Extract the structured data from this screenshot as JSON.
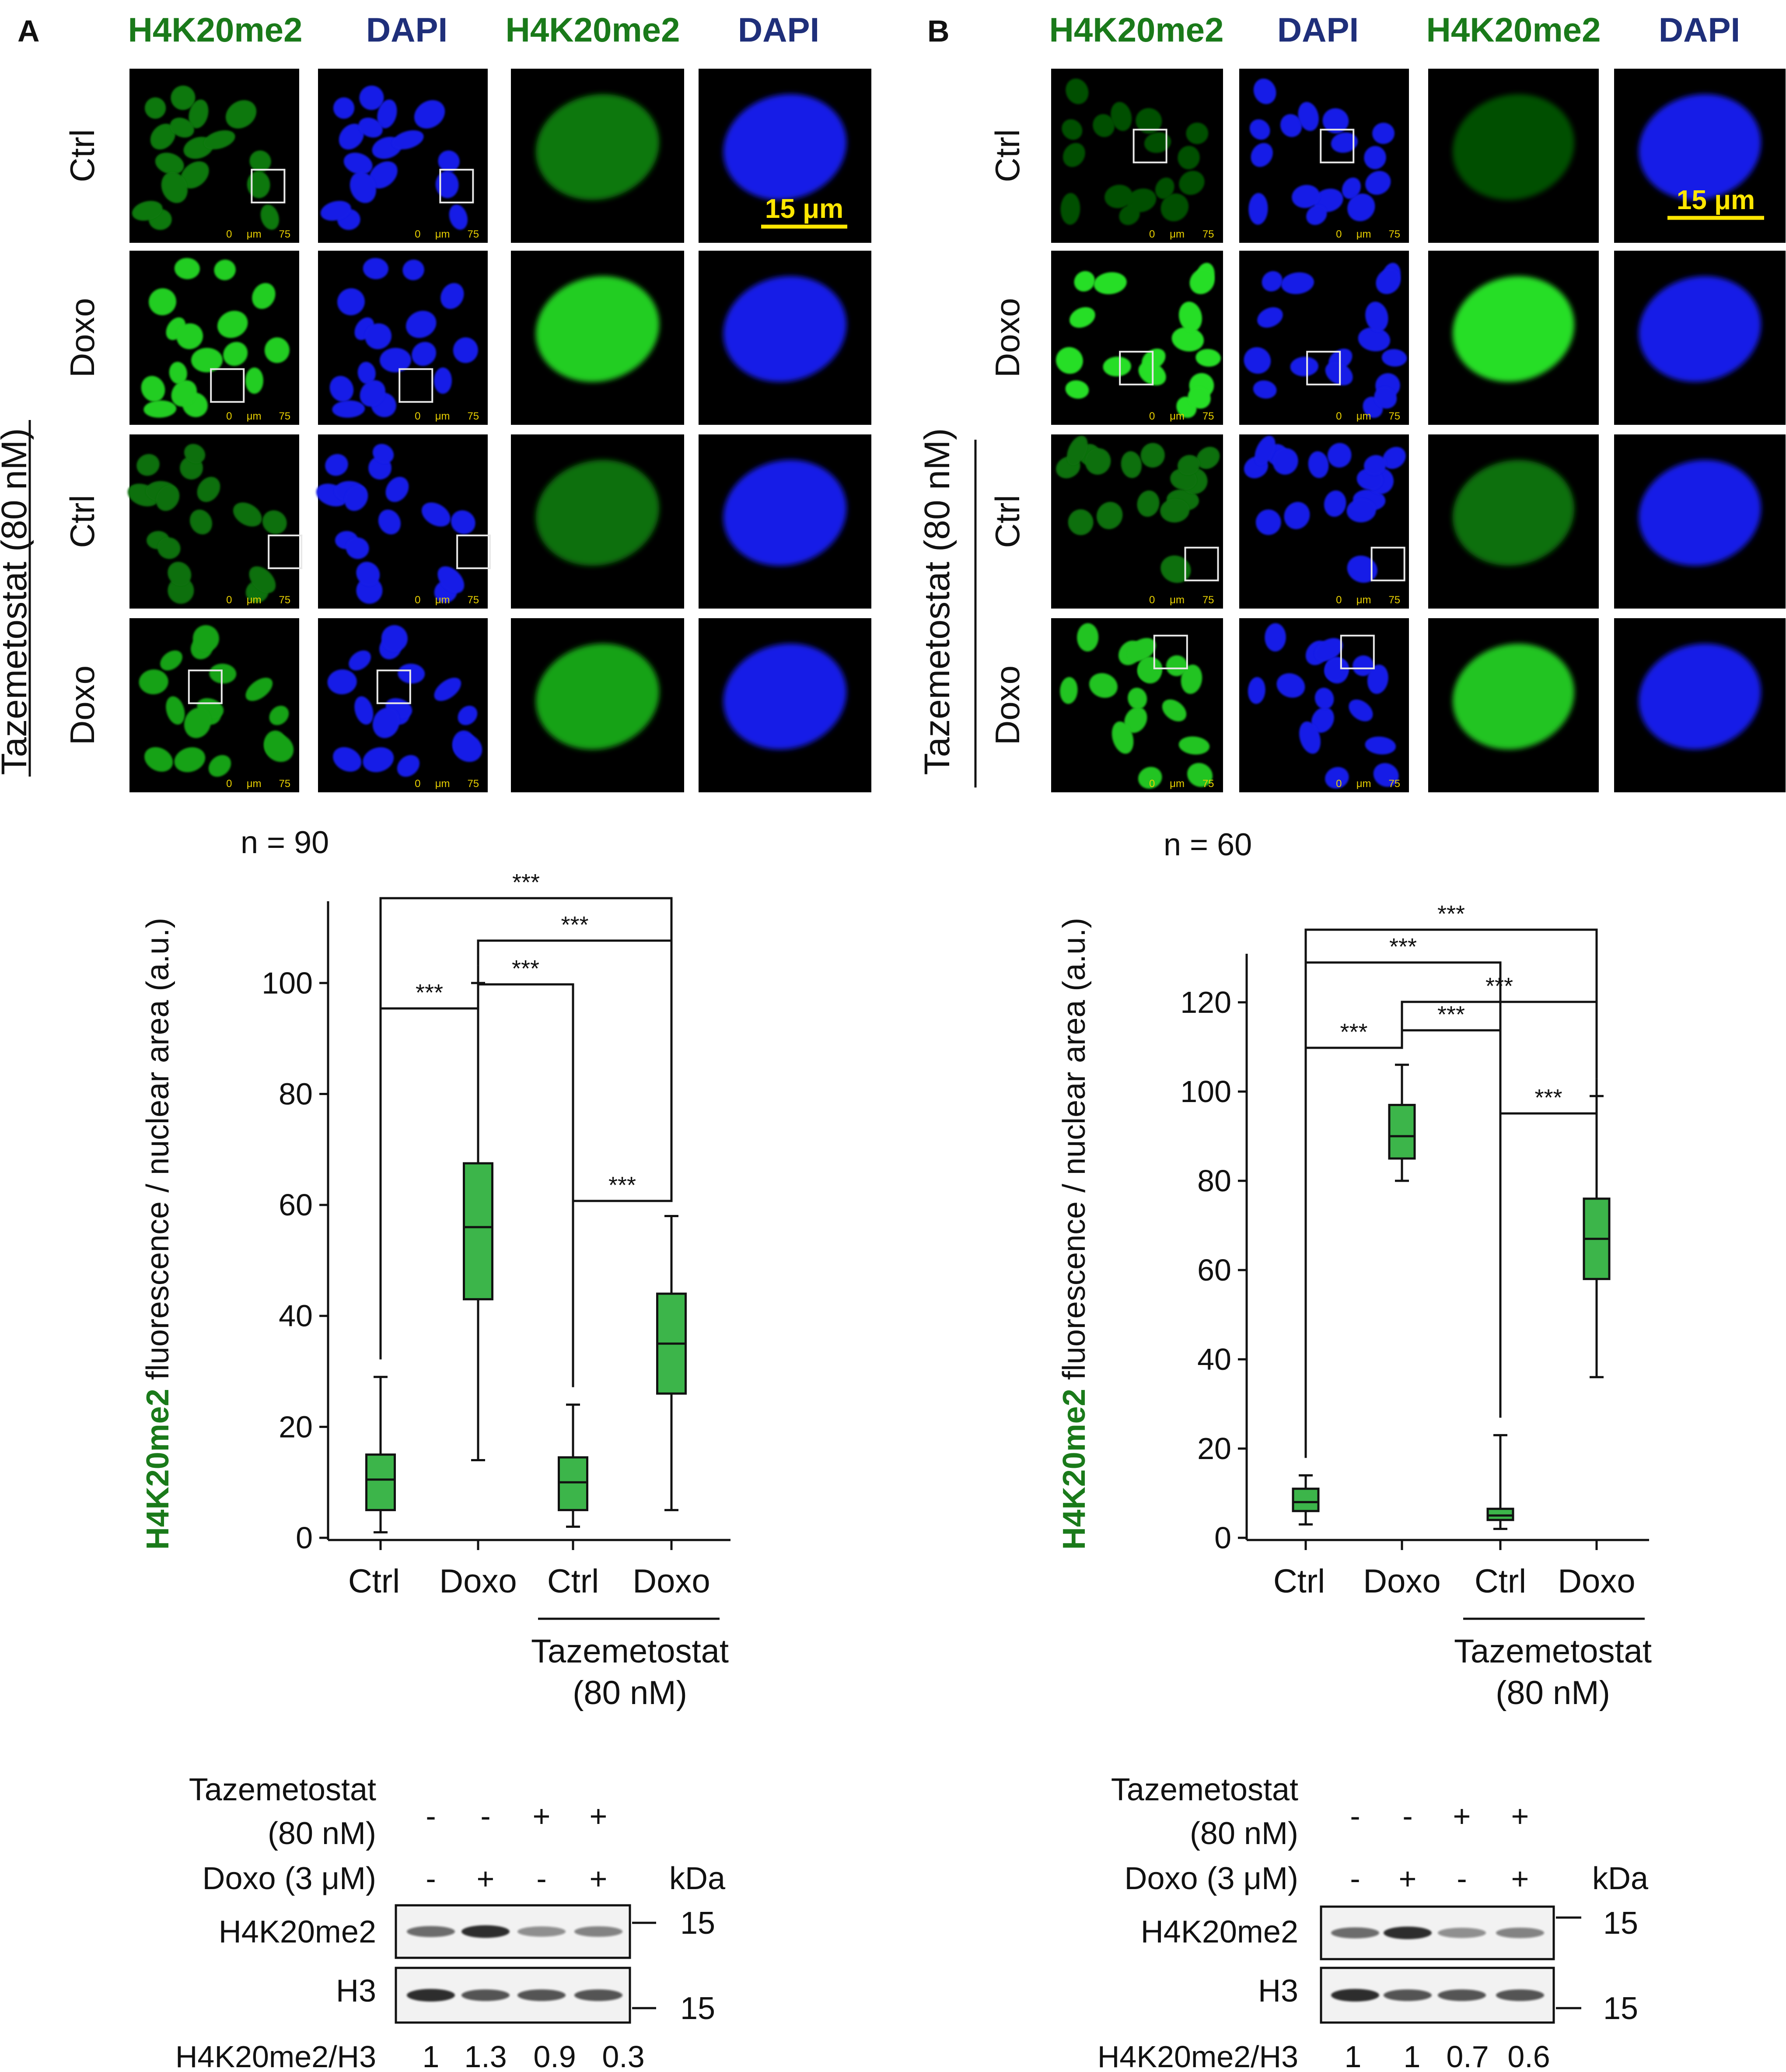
{
  "panels": [
    {
      "letter": "A",
      "headers": [
        "H4K20me2",
        "DAPI",
        "H4K20me2",
        "DAPI"
      ],
      "header_colors": [
        "#1a7a1a",
        "#1f2f7a",
        "#1a7a1a",
        "#1f2f7a"
      ],
      "row_labels": [
        "Ctrl",
        "Doxo",
        "Ctrl",
        "Doxo"
      ],
      "side_label": "Tazemetostat (80 nM)",
      "scale_bar_text": "15 μm",
      "tiny_scale_text": [
        "0",
        "μm",
        "75"
      ],
      "chart_data": {
        "type": "box",
        "n_label": "n = 90",
        "ylabel_colored": "H4K20me2",
        "ylabel_rest": " fluorescence / nuclear area  (a.u.)",
        "ylim": [
          0,
          110
        ],
        "yticks": [
          0,
          20,
          40,
          60,
          80,
          100
        ],
        "categories": [
          "Ctrl",
          "Doxo",
          "Ctrl",
          "Doxo"
        ],
        "group_label": [
          "Tazemetostat",
          "(80 nM)"
        ],
        "boxes": [
          {
            "min": 1,
            "q1": 5,
            "median": 10.5,
            "q3": 15,
            "max": 29
          },
          {
            "min": 14,
            "q1": 43,
            "median": 56,
            "q3": 67.5,
            "max": 100
          },
          {
            "min": 2,
            "q1": 5,
            "median": 10,
            "q3": 14.5,
            "max": 24
          },
          {
            "min": 5,
            "q1": 26,
            "median": 35,
            "q3": 44,
            "max": 58
          }
        ],
        "significance": [
          {
            "a": 0,
            "b": 3,
            "label": "***"
          },
          {
            "a": 1,
            "b": 3,
            "label": "***"
          },
          {
            "a": 1,
            "b": 2,
            "label": "***"
          },
          {
            "a": 0,
            "b": 1,
            "label": "***"
          },
          {
            "a": 2,
            "b": 3,
            "label": "***"
          }
        ]
      },
      "blot": {
        "taz_label": [
          "Tazemetostat",
          "(80 nM)"
        ],
        "taz_signs": [
          "-",
          "-",
          "+",
          "+"
        ],
        "doxo_label": "Doxo (3 μM)",
        "doxo_signs": [
          "-",
          "+",
          "-",
          "+"
        ],
        "kda": "kDa",
        "bands": [
          "H4K20me2",
          "H3"
        ],
        "marker": "15",
        "ratio_label": "H4K20me2/H3",
        "ratios": [
          "1",
          "1.3",
          "0.9",
          "0.3"
        ]
      }
    },
    {
      "letter": "B",
      "headers": [
        "H4K20me2",
        "DAPI",
        "H4K20me2",
        "DAPI"
      ],
      "header_colors": [
        "#1a7a1a",
        "#1f2f7a",
        "#1a7a1a",
        "#1f2f7a"
      ],
      "row_labels": [
        "Ctrl",
        "Doxo",
        "Ctrl",
        "Doxo"
      ],
      "side_label": "Tazemetostat (80 nM)",
      "scale_bar_text": "15 μm",
      "tiny_scale_text": [
        "0",
        "μm",
        "75"
      ],
      "chart_data": {
        "type": "box",
        "n_label": "n = 60",
        "ylabel_colored": "H4K20me2",
        "ylabel_rest": " fluorescence / nuclear area  (a.u.)",
        "ylim": [
          0,
          125
        ],
        "yticks": [
          0,
          20,
          40,
          60,
          80,
          100,
          120
        ],
        "categories": [
          "Ctrl",
          "Doxo",
          "Ctrl",
          "Doxo"
        ],
        "group_label": [
          "Tazemetostat",
          "(80 nM)"
        ],
        "boxes": [
          {
            "min": 3,
            "q1": 6,
            "median": 8,
            "q3": 11,
            "max": 14
          },
          {
            "min": 80,
            "q1": 85,
            "median": 90,
            "q3": 97,
            "max": 106
          },
          {
            "min": 2,
            "q1": 4,
            "median": 5,
            "q3": 6.5,
            "max": 23
          },
          {
            "min": 36,
            "q1": 58,
            "median": 67,
            "q3": 76,
            "max": 99
          }
        ],
        "significance": [
          {
            "a": 0,
            "b": 3,
            "label": "***"
          },
          {
            "a": 0,
            "b": 2,
            "label": "***"
          },
          {
            "a": 1,
            "b": 3,
            "label": "***"
          },
          {
            "a": 1,
            "b": 2,
            "label": "***"
          },
          {
            "a": 0,
            "b": 1,
            "label": "***"
          },
          {
            "a": 2,
            "b": 3,
            "label": "***"
          }
        ]
      },
      "blot": {
        "taz_label": [
          "Tazemetostat",
          "(80 nM)"
        ],
        "taz_signs": [
          "-",
          "-",
          "+",
          "+"
        ],
        "doxo_label": "Doxo (3 μM)",
        "doxo_signs": [
          "-",
          "+",
          "-",
          "+"
        ],
        "kda": "kDa",
        "bands": [
          "H4K20me2",
          "H3"
        ],
        "marker": "15",
        "ratio_label": "H4K20me2/H3",
        "ratios": [
          "1",
          "1",
          "0.7",
          "0.6"
        ]
      }
    }
  ],
  "colors": {
    "green_box": "#3cb54a",
    "green_text": "#1a7a1a",
    "blue_text": "#1f2f7a",
    "scale_yellow": "#ffe600"
  }
}
